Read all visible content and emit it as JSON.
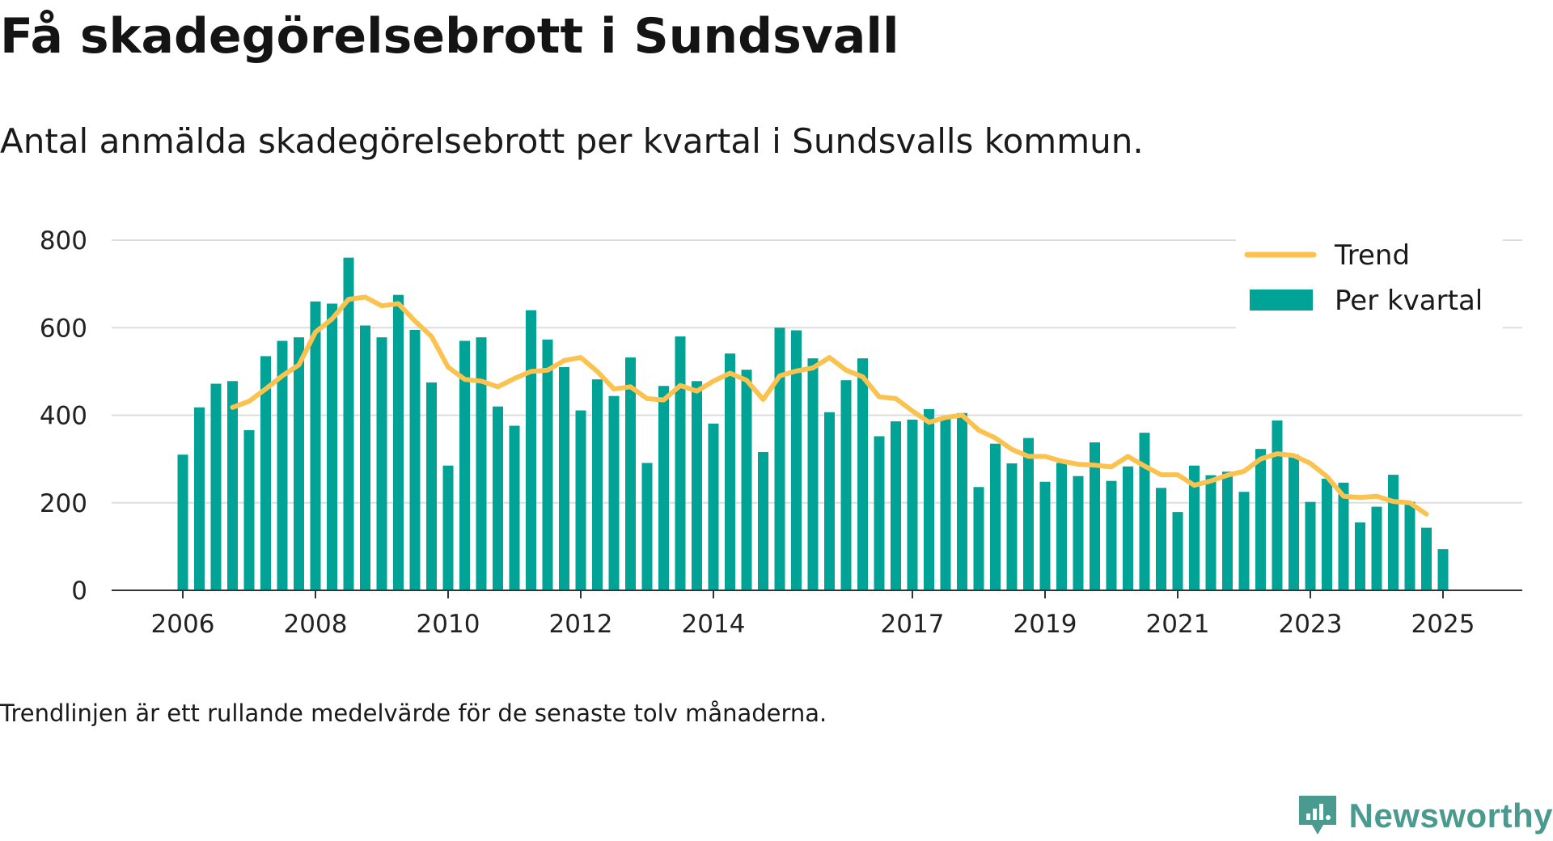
{
  "title": "Få skadegörelsebrott i Sundsvall",
  "subtitle": "Antal anmälda skadegörelsebrott per kvartal i Sundsvalls kommun.",
  "footnote": "Trendlinjen är ett rullande medelvärde för de senaste tolv månaderna.",
  "brand": {
    "name": "Newsworthy",
    "icon": "newsworthy-logo-icon",
    "color": "#4a9a8f"
  },
  "chart_data": {
    "type": "bar",
    "ylim": [
      0,
      800
    ],
    "yticks": [
      0,
      200,
      400,
      600,
      800
    ],
    "xticks": [
      "2006",
      "2008",
      "2010",
      "2012",
      "2014",
      "2017",
      "2019",
      "2021",
      "2023",
      "2025"
    ],
    "grid": true,
    "legend_position": "top-right",
    "colors": {
      "bars": "#00a396",
      "trend": "#fcc24f"
    },
    "legend": {
      "trend": "Trend",
      "bars": "Per kvartal"
    },
    "quarters": [
      "2006Q1",
      "2006Q2",
      "2006Q3",
      "2006Q4",
      "2007Q1",
      "2007Q2",
      "2007Q3",
      "2007Q4",
      "2008Q1",
      "2008Q2",
      "2008Q3",
      "2008Q4",
      "2009Q1",
      "2009Q2",
      "2009Q3",
      "2009Q4",
      "2010Q1",
      "2010Q2",
      "2010Q3",
      "2010Q4",
      "2011Q1",
      "2011Q2",
      "2011Q3",
      "2011Q4",
      "2012Q1",
      "2012Q2",
      "2012Q3",
      "2012Q4",
      "2013Q1",
      "2013Q2",
      "2013Q3",
      "2013Q4",
      "2014Q1",
      "2014Q2",
      "2014Q3",
      "2014Q4",
      "2015Q1",
      "2015Q2",
      "2015Q3",
      "2015Q4",
      "2016Q1",
      "2016Q2",
      "2016Q3",
      "2016Q4",
      "2017Q1",
      "2017Q2",
      "2017Q3",
      "2017Q4",
      "2018Q1",
      "2018Q2",
      "2018Q3",
      "2018Q4",
      "2019Q1",
      "2019Q2",
      "2019Q3",
      "2019Q4",
      "2020Q1",
      "2020Q2",
      "2020Q3",
      "2020Q4",
      "2021Q1",
      "2021Q2",
      "2021Q3",
      "2021Q4",
      "2022Q1",
      "2022Q2",
      "2022Q3",
      "2022Q4",
      "2023Q1",
      "2023Q2",
      "2023Q3",
      "2023Q4",
      "2024Q1",
      "2024Q2",
      "2024Q3",
      "2024Q4",
      "2025Q1"
    ],
    "series": [
      {
        "name": "Per kvartal",
        "values": [
          310,
          418,
          472,
          478,
          366,
          535,
          570,
          578,
          660,
          655,
          760,
          605,
          578,
          675,
          595,
          475,
          285,
          570,
          578,
          420,
          376,
          640,
          573,
          510,
          411,
          482,
          444,
          532,
          291,
          467,
          580,
          478,
          381,
          541,
          504,
          316,
          600,
          594,
          530,
          407,
          480,
          530,
          352,
          386,
          390,
          414,
          392,
          405,
          236,
          335,
          290,
          348,
          248,
          291,
          261,
          338,
          250,
          283,
          360,
          234,
          179,
          285,
          263,
          271,
          225,
          323,
          388,
          310,
          202,
          255,
          246,
          155,
          191,
          264,
          202,
          143,
          94
        ]
      },
      {
        "name": "Trend",
        "start": "2006Q4",
        "values": [
          418,
          432,
          460,
          490,
          515,
          590,
          620,
          665,
          670,
          650,
          655,
          615,
          580,
          510,
          482,
          478,
          465,
          484,
          500,
          503,
          525,
          532,
          500,
          460,
          465,
          438,
          435,
          468,
          455,
          478,
          496,
          480,
          436,
          490,
          501,
          508,
          532,
          503,
          488,
          442,
          438,
          410,
          384,
          395,
          400,
          366,
          348,
          322,
          306,
          306,
          295,
          288,
          286,
          282,
          306,
          284,
          264,
          264,
          240,
          250,
          263,
          272,
          300,
          312,
          308,
          290,
          260,
          215,
          212,
          215,
          203,
          200,
          174
        ]
      }
    ]
  }
}
